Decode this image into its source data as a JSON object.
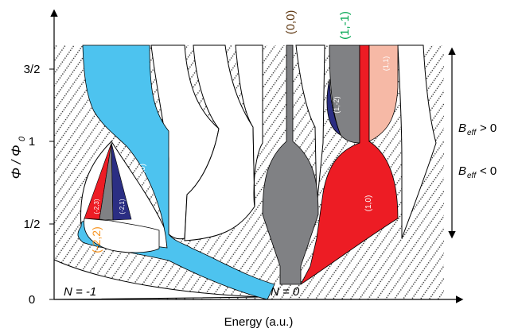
{
  "axes": {
    "x_label": "Energy (a.u.)",
    "y_label_main": "Φ / Φ",
    "y_label_sub": "0",
    "y_ticks": [
      "0",
      "1/2",
      "1",
      "3/2"
    ]
  },
  "region_labels": {
    "n_minus_one": "N = -1",
    "n_zero": "N = 0",
    "minus2_2": "(-2,2)",
    "minus2_3": "(-2,3)",
    "minus2_1": "(-2,1)",
    "minus2_0": "(-2,0)",
    "zero_zero": "(0,0)",
    "one_minus1": "(1,-1)",
    "one_minus2": "(1,-2)",
    "one_one": "(1,1)",
    "one_zero": "(1,0)"
  },
  "field_labels": {
    "positive": "B",
    "positive_sub": "eff",
    "positive_tail": " > 0",
    "negative": "B",
    "negative_sub": "eff",
    "negative_tail": " < 0"
  },
  "colors": {
    "cyan": "#4dc3ef",
    "gray": "#808184",
    "red": "#ed1c24",
    "navy": "#2b2e83",
    "salmon": "#f6b9a6",
    "orange": "#f7931e",
    "green": "#00a651",
    "brown": "#603913"
  }
}
